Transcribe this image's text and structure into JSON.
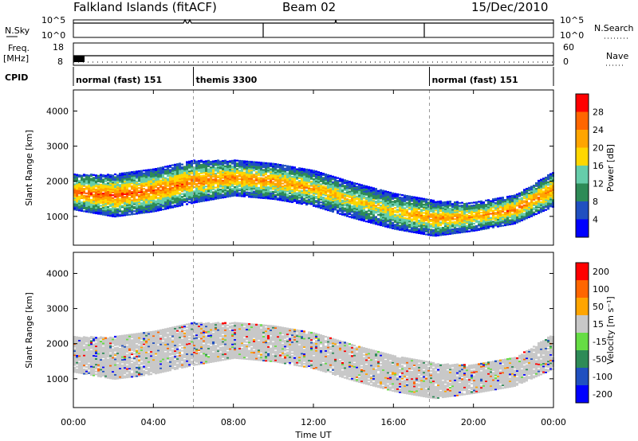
{
  "header": {
    "title": "Falkland Islands (fitACF)",
    "beam": "Beam 02",
    "date": "15/Dec/2010"
  },
  "side_labels": {
    "nsky": "N.Sky",
    "freq": "Freq.",
    "freq_unit": "[MHz]",
    "cpid": "CPID",
    "nsearch": "N.Search",
    "nave": "Nave"
  },
  "noise_ticks": {
    "left_top": "10^5",
    "left_bottom": "10^0",
    "right_top": "10^5",
    "right_bottom": "10^0"
  },
  "freq_ticks": {
    "left_top": "18",
    "left_bottom": "8",
    "right_top": "60",
    "right_bottom": "0"
  },
  "cpid_segments": [
    {
      "label": "normal (fast) 151",
      "start_h": 0.0,
      "end_h": 6.0
    },
    {
      "label": "themis 3300",
      "start_h": 6.0,
      "end_h": 17.8
    },
    {
      "label": "normal (fast) 151",
      "start_h": 17.8,
      "end_h": 24.0
    }
  ],
  "x_axis": {
    "title": "Time UT",
    "ticks": [
      "00:00",
      "04:00",
      "08:00",
      "12:00",
      "16:00",
      "20:00",
      "00:00"
    ]
  },
  "y_axis": {
    "title": "Slant Range [km]",
    "ticks": [
      "1000",
      "2000",
      "3000",
      "4000"
    ]
  },
  "colorbars": {
    "power": {
      "title": "Power [dB]",
      "ticks": [
        "4",
        "8",
        "12",
        "16",
        "20",
        "24",
        "28"
      ]
    },
    "velocity": {
      "title": "Velocity [m s⁻¹]",
      "ticks": [
        "200",
        "100",
        "50",
        "15",
        "-15",
        "-50",
        "-100",
        "-200"
      ]
    }
  },
  "chart_data": [
    {
      "type": "heatmap",
      "title": "Power",
      "xlabel": "Time UT",
      "ylabel": "Slant Range [km]",
      "xlim_hours": [
        0,
        24
      ],
      "ylim": [
        180,
        4600
      ],
      "legend": "colorbar right",
      "colorscale": [
        "#0000ff",
        "#2050c0",
        "#2e8b57",
        "#66cdaa",
        "#ffd700",
        "#ffa500",
        "#ff6600",
        "#ff0000"
      ],
      "colorscale_range": [
        0,
        32
      ],
      "echo_band": {
        "time_h": [
          0,
          2,
          4,
          6,
          8,
          10,
          12,
          14,
          16,
          18,
          20,
          22,
          24
        ],
        "center_range_km": [
          1700,
          1600,
          1750,
          2000,
          2100,
          2000,
          1800,
          1450,
          1150,
          950,
          1000,
          1200,
          1800
        ],
        "width_km": [
          500,
          600,
          600,
          600,
          500,
          500,
          500,
          500,
          500,
          500,
          400,
          400,
          500
        ],
        "peak_power_db": [
          26,
          27,
          26,
          25,
          24,
          24,
          22,
          20,
          20,
          24,
          22,
          26,
          24
        ]
      }
    },
    {
      "type": "heatmap",
      "title": "Velocity",
      "xlabel": "Time UT",
      "ylabel": "Slant Range [km]",
      "xlim_hours": [
        0,
        24
      ],
      "ylim": [
        180,
        4600
      ],
      "legend": "colorbar right",
      "colorscale": [
        "#0000ff",
        "#2050c0",
        "#2e8b57",
        "#66dd44",
        "#c8c8c8",
        "#ffa500",
        "#ff6600",
        "#ff0000"
      ],
      "colorscale_bounds": [
        200,
        100,
        50,
        15,
        -15,
        -50,
        -100,
        -200
      ],
      "dominant_value": "15 to -15 (ground scatter, grey)"
    }
  ]
}
